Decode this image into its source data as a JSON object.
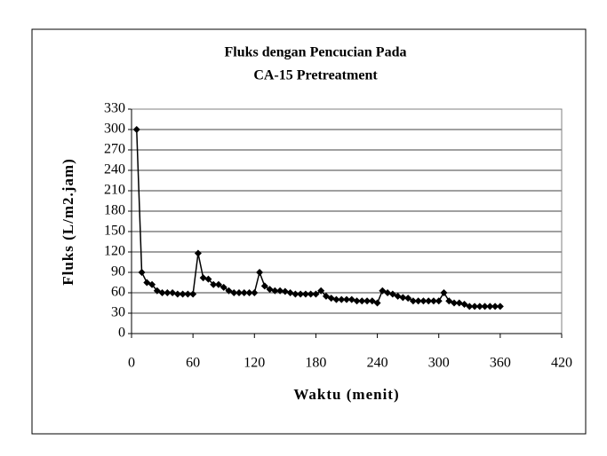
{
  "chart_data": {
    "type": "line",
    "title": [
      "Fluks dengan Pencucian Pada",
      "CA-15 Pretreatment"
    ],
    "x_label": "Waktu  (menit)",
    "y_label": "Fluks (L/m2.jam)",
    "x": [
      5,
      10,
      15,
      20,
      25,
      30,
      35,
      40,
      45,
      50,
      55,
      60,
      65,
      70,
      75,
      80,
      85,
      90,
      95,
      100,
      105,
      110,
      115,
      120,
      125,
      130,
      135,
      140,
      145,
      150,
      155,
      160,
      165,
      170,
      175,
      180,
      185,
      190,
      195,
      200,
      205,
      210,
      215,
      220,
      225,
      230,
      235,
      240,
      245,
      250,
      255,
      260,
      265,
      270,
      275,
      280,
      285,
      290,
      295,
      300,
      305,
      310,
      315,
      320,
      325,
      330,
      335,
      340,
      345,
      350,
      355,
      360
    ],
    "values": [
      300,
      90,
      75,
      72,
      63,
      60,
      60,
      60,
      58,
      58,
      58,
      58,
      118,
      82,
      80,
      72,
      72,
      68,
      63,
      60,
      60,
      60,
      60,
      60,
      90,
      70,
      65,
      63,
      63,
      62,
      60,
      58,
      58,
      58,
      58,
      58,
      63,
      55,
      52,
      50,
      50,
      50,
      50,
      48,
      48,
      48,
      48,
      45,
      63,
      60,
      58,
      55,
      53,
      52,
      48,
      48,
      48,
      48,
      48,
      48,
      60,
      48,
      45,
      45,
      43,
      40,
      40,
      40,
      40,
      40,
      40,
      40
    ],
    "color": "#000000",
    "xlim": [
      0,
      420
    ],
    "xticks": [
      0,
      60,
      120,
      180,
      240,
      300,
      360,
      420
    ],
    "ylim": [
      0,
      330
    ],
    "yticks": [
      0,
      30,
      60,
      90,
      120,
      150,
      180,
      210,
      240,
      270,
      300,
      330
    ],
    "grid": true
  }
}
